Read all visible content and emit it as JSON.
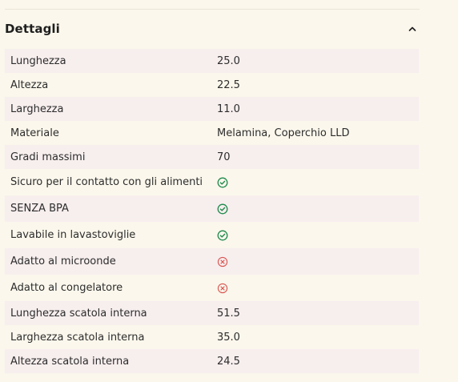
{
  "section": {
    "title": "Dettagli",
    "toggle_icon": "chevron-up-icon"
  },
  "colors": {
    "background": "#fbf7ec",
    "row_alt": "#f7eeee",
    "check": "#1f8a4c",
    "cross": "#d9534f"
  },
  "details": [
    {
      "label": "Lunghezza",
      "value": "25.0",
      "icon": null
    },
    {
      "label": "Altezza",
      "value": "22.5",
      "icon": null
    },
    {
      "label": "Larghezza",
      "value": "11.0",
      "icon": null
    },
    {
      "label": "Materiale",
      "value": "Melamina, Coperchio LLD",
      "icon": null
    },
    {
      "label": "Gradi massimi",
      "value": "70",
      "icon": null
    },
    {
      "label": "Sicuro per il contatto con gli alimenti",
      "value": null,
      "icon": "check-circle-icon"
    },
    {
      "label": "SENZA BPA",
      "value": null,
      "icon": "check-circle-icon"
    },
    {
      "label": "Lavabile in lavastoviglie",
      "value": null,
      "icon": "check-circle-icon"
    },
    {
      "label": "Adatto al microonde",
      "value": null,
      "icon": "x-circle-icon"
    },
    {
      "label": "Adatto al congelatore",
      "value": null,
      "icon": "x-circle-icon"
    },
    {
      "label": "Lunghezza scatola interna",
      "value": "51.5",
      "icon": null
    },
    {
      "label": "Larghezza scatola interna",
      "value": "35.0",
      "icon": null
    },
    {
      "label": "Altezza scatola interna",
      "value": "24.5",
      "icon": null
    }
  ]
}
